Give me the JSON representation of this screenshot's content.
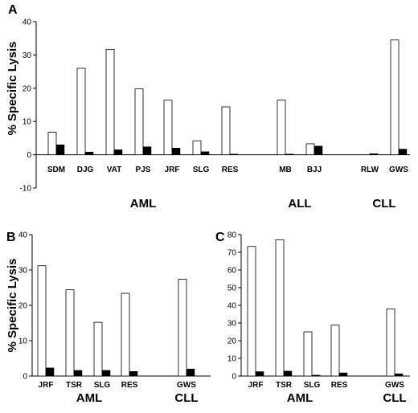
{
  "ylabel": "% Specific Lysis",
  "colors": {
    "white_bar": "#ffffff",
    "black_bar": "#000000",
    "stroke": "#000000"
  },
  "chart_data": [
    {
      "panel": "A",
      "type": "bar",
      "ylim": [
        -10,
        40
      ],
      "yticks": [
        -10,
        0,
        10,
        20,
        30,
        40
      ],
      "ylabel": "% Specific Lysis",
      "categories": [
        "SDM",
        "DJG",
        "VAT",
        "PJS",
        "JRF",
        "SLG",
        "RES",
        "MB",
        "BJJ",
        "RLW",
        "GWS"
      ],
      "groups": [
        {
          "label": "AML",
          "members": [
            "SDM",
            "DJG",
            "VAT",
            "PJS",
            "JRF",
            "SLG",
            "RES"
          ]
        },
        {
          "label": "ALL",
          "members": [
            "MB",
            "BJJ"
          ]
        },
        {
          "label": "CLL",
          "members": [
            "RLW",
            "GWS"
          ]
        }
      ],
      "series": [
        {
          "values": [
            6.8,
            26,
            31.7,
            19.8,
            16.4,
            4.2,
            14.4,
            16.4,
            3.3,
            0,
            34.5
          ]
        },
        {
          "values": [
            3,
            0.8,
            1.5,
            2.4,
            2,
            0.9,
            0.2,
            0.2,
            2.6,
            0.3,
            1.7
          ]
        }
      ]
    },
    {
      "panel": "B",
      "type": "bar",
      "ylim": [
        0,
        40
      ],
      "yticks": [
        0,
        10,
        20,
        30,
        40
      ],
      "ylabel": "% Specific Lysis",
      "categories": [
        "JRF",
        "TSR",
        "SLG",
        "RES",
        "GWS"
      ],
      "groups": [
        {
          "label": "AML",
          "members": [
            "JRF",
            "TSR",
            "SLG",
            "RES"
          ]
        },
        {
          "label": "CLL",
          "members": [
            "GWS"
          ]
        }
      ],
      "series": [
        {
          "values": [
            31.2,
            24.4,
            15.2,
            23.4,
            27.4
          ]
        },
        {
          "values": [
            2.3,
            1.6,
            1.6,
            1.3,
            2.0
          ]
        }
      ]
    },
    {
      "panel": "C",
      "type": "bar",
      "ylim": [
        0,
        80
      ],
      "yticks": [
        0,
        10,
        20,
        30,
        40,
        50,
        60,
        70,
        80
      ],
      "categories": [
        "JRF",
        "TSR",
        "SLG",
        "RES",
        "GWS"
      ],
      "groups": [
        {
          "label": "AML",
          "members": [
            "JRF",
            "TSR",
            "SLG",
            "RES"
          ]
        },
        {
          "label": "CLL",
          "members": [
            "GWS"
          ]
        }
      ],
      "series": [
        {
          "values": [
            73.3,
            77,
            25,
            28.8,
            38
          ]
        },
        {
          "values": [
            2.5,
            2.8,
            0.5,
            1.8,
            1.3
          ]
        }
      ]
    }
  ]
}
